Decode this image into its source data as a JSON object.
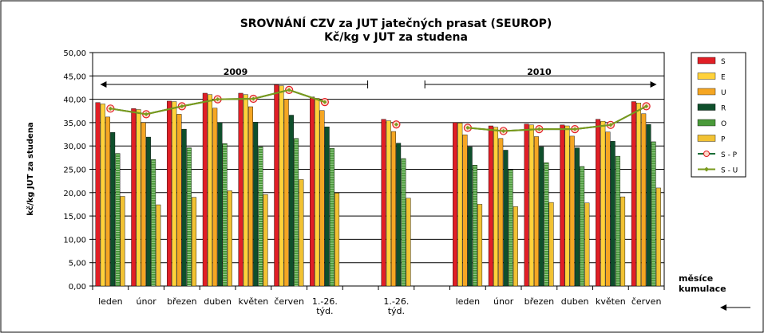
{
  "chart_data": {
    "type": "bar",
    "title": "SROVNÁNÍ  CZV za JUT jatečných prasat (SEUROP)",
    "subtitle": "Kč/kg v JUT za studena",
    "ylabel": "kč/kg  JUT za studena",
    "xlabel": "měsíce",
    "xlabel2": "kumulace",
    "ylim": [
      0,
      50
    ],
    "ytick_step": 5,
    "ytick_labels": [
      "0,00",
      "5,00",
      "10,00",
      "15,00",
      "20,00",
      "25,00",
      "30,00",
      "35,00",
      "40,00",
      "45,00",
      "50,00"
    ],
    "grid": true,
    "legend_position": "right",
    "categories": [
      "leden",
      "únor",
      "březen",
      "duben",
      "květen",
      "červen",
      "1.-26. týd.",
      "",
      "1.-26. týd.",
      "",
      "leden",
      "únor",
      "březen",
      "duben",
      "květen",
      "červen"
    ],
    "category_lines": [
      [
        "leden"
      ],
      [
        "únor"
      ],
      [
        "březen"
      ],
      [
        "duben"
      ],
      [
        "květen"
      ],
      [
        "červen"
      ],
      [
        "1.-26.",
        "týd."
      ],
      [
        ""
      ],
      [
        "1.-26.",
        "týd."
      ],
      [
        ""
      ],
      [
        "leden"
      ],
      [
        "únor"
      ],
      [
        "březen"
      ],
      [
        "duben"
      ],
      [
        "květen"
      ],
      [
        "červen"
      ]
    ],
    "period_labels": [
      {
        "label": "2009",
        "from": 0,
        "to": 7
      },
      {
        "label": "2010",
        "from": 9,
        "to": 15
      }
    ],
    "series": [
      {
        "name": "S",
        "color": "#e11f26",
        "values": [
          39.3,
          38.0,
          39.6,
          41.3,
          41.3,
          43.2,
          40.5,
          null,
          35.7,
          null,
          35.0,
          34.3,
          34.7,
          34.5,
          35.7,
          39.5
        ]
      },
      {
        "name": "E",
        "color": "#ffd23a",
        "values": [
          39.0,
          37.8,
          39.5,
          41.0,
          41.0,
          42.9,
          40.2,
          null,
          35.4,
          null,
          34.9,
          34.0,
          34.5,
          34.3,
          35.3,
          39.2
        ]
      },
      {
        "name": "U",
        "color": "#f5a623",
        "values": [
          36.2,
          35.0,
          36.8,
          38.1,
          38.4,
          40.0,
          37.6,
          null,
          33.1,
          null,
          32.4,
          31.6,
          32.0,
          32.1,
          33.0,
          36.9
        ]
      },
      {
        "name": "R",
        "color": "#0f4f2c",
        "values": [
          32.9,
          31.9,
          33.6,
          35.0,
          35.1,
          36.6,
          34.1,
          null,
          30.6,
          null,
          29.8,
          29.1,
          29.8,
          29.6,
          31.0,
          34.6
        ]
      },
      {
        "name": "O",
        "color": "#4a9a3a",
        "values": [
          28.4,
          27.1,
          29.6,
          30.5,
          29.8,
          31.6,
          29.5,
          null,
          27.3,
          null,
          25.9,
          24.9,
          26.4,
          25.6,
          27.8,
          30.9
        ]
      },
      {
        "name": "P",
        "color": "#f2c233",
        "values": [
          19.2,
          17.4,
          19.0,
          20.4,
          19.6,
          22.8,
          19.9,
          null,
          18.8,
          null,
          17.5,
          17.0,
          17.9,
          17.8,
          19.1,
          21.0
        ]
      }
    ],
    "line_series": [
      {
        "name": "S - P",
        "color": "#1b6e37",
        "marker": "circle",
        "values": [
          38.0,
          36.8,
          38.5,
          40.0,
          40.1,
          42.0,
          39.4,
          null,
          34.6,
          null,
          33.9,
          33.2,
          33.6,
          33.6,
          34.5,
          38.5
        ]
      },
      {
        "name": "S - U",
        "color": "#7a9a1c",
        "marker": "diamond",
        "values": [
          38.0,
          36.8,
          38.5,
          40.0,
          40.1,
          42.0,
          39.4,
          null,
          34.6,
          null,
          33.9,
          33.2,
          33.6,
          33.6,
          34.5,
          38.5
        ]
      }
    ]
  }
}
